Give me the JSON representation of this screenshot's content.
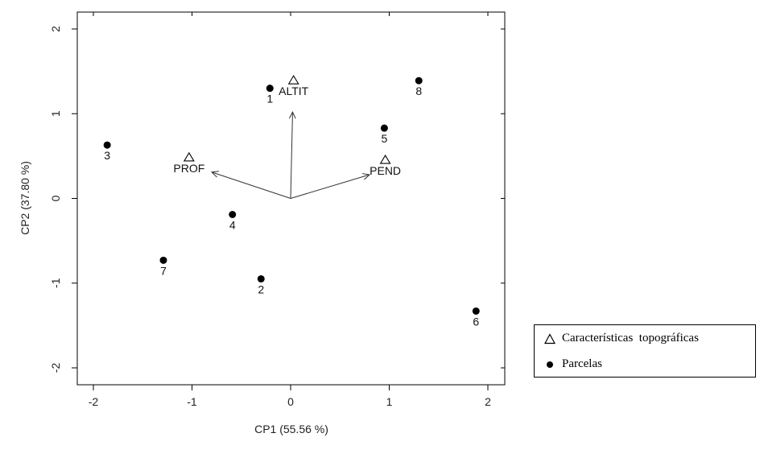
{
  "chart_data": {
    "type": "scatter",
    "xlabel": "CP1 (55.56 %)",
    "ylabel": "CP2 (37.80 %)",
    "xlim": [
      -2.1,
      2.1
    ],
    "ylim": [
      -2.1,
      2.1
    ],
    "x_ticks": [
      -2,
      -1,
      0,
      1,
      2
    ],
    "y_ticks": [
      -2,
      -1,
      0,
      1,
      2
    ],
    "x_tick_labels": [
      "-2",
      "-1",
      "0",
      "1",
      "2"
    ],
    "y_tick_labels": [
      "-2",
      "-1",
      "0",
      "1",
      "2"
    ],
    "grid": false,
    "series": [
      {
        "name": "Parcelas",
        "marker": "filled-circle",
        "color": "#000000",
        "points": [
          {
            "label": "1",
            "x": -0.21,
            "y": 1.3
          },
          {
            "label": "2",
            "x": -0.3,
            "y": -0.95
          },
          {
            "label": "3",
            "x": -1.86,
            "y": 0.63
          },
          {
            "label": "4",
            "x": -0.59,
            "y": -0.19
          },
          {
            "label": "5",
            "x": 0.95,
            "y": 0.83
          },
          {
            "label": "6",
            "x": 1.88,
            "y": -1.33
          },
          {
            "label": "7",
            "x": -1.29,
            "y": -0.73
          },
          {
            "label": "8",
            "x": 1.3,
            "y": 1.39
          }
        ]
      },
      {
        "name": "Características topográficas",
        "marker": "open-triangle",
        "color": "#000000",
        "points": [
          {
            "label": "ALTIT",
            "x": 0.03,
            "y": 1.4
          },
          {
            "label": "PROF",
            "x": -1.03,
            "y": 0.49
          },
          {
            "label": "PEND",
            "x": 0.96,
            "y": 0.46
          }
        ]
      }
    ],
    "arrows": [
      {
        "name": "ALTIT",
        "x": 0.02,
        "y": 1.02
      },
      {
        "name": "PROF",
        "x": -0.8,
        "y": 0.31
      },
      {
        "name": "PEND",
        "x": 0.8,
        "y": 0.28
      }
    ],
    "legend_position": "bottom-right-outside",
    "legend": [
      {
        "symbol": "open-triangle",
        "label": "Características  topográficas"
      },
      {
        "symbol": "filled-circle",
        "label": "Parcelas"
      }
    ]
  }
}
